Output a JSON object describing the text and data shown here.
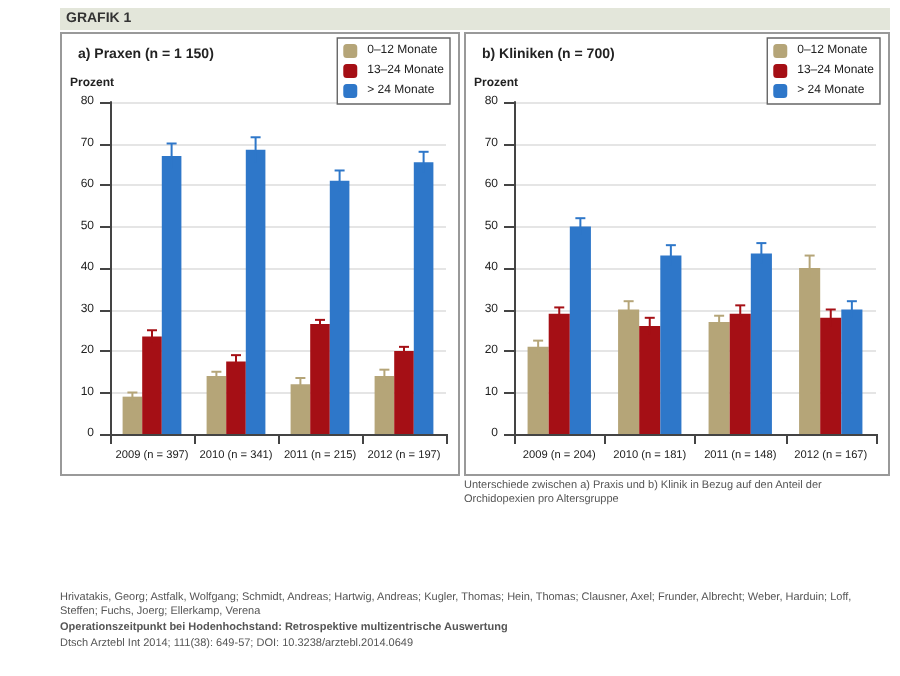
{
  "chart_data": [
    {
      "type": "bar",
      "title": "a) Praxen (n = 1 150)",
      "ylabel": "Prozent",
      "categories": [
        "2009 (n = 397)",
        "2010 (n = 341)",
        "2011 (n = 215)",
        "2012 (n = 197)"
      ],
      "series": [
        {
          "name": "0–12 Monate",
          "color": "#b5a578",
          "values": [
            9,
            14,
            12,
            14
          ],
          "errors": [
            1,
            1,
            1.5,
            1.5
          ]
        },
        {
          "name": "13–24 Monate",
          "color": "#a50f15",
          "values": [
            23.5,
            17.5,
            26.5,
            20
          ],
          "errors": [
            1.5,
            1.5,
            1,
            1
          ]
        },
        {
          "name": "> 24 Monate",
          "color": "#2e77c9",
          "values": [
            67,
            68.5,
            61,
            65.5
          ],
          "errors": [
            3,
            3,
            2.5,
            2.5
          ]
        }
      ],
      "ylim": [
        0,
        80
      ],
      "yticks": [
        0,
        10,
        20,
        30,
        40,
        50,
        60,
        70,
        80
      ],
      "grid": "y",
      "legend": "top right",
      "annotations": [
        "GRAFIK 1",
        "Hrivatakis, Georg; Astfalk, Wolfgang; Schmidt, Andreas; Hartwig, Andreas; Kugler, Thomas; Hein, Thomas; Clausner, Axel; Frunder, Albrecht; Weber, Harduin; Loff, Steffen; Fuchs, Joerg; Ellerkamp, Verena",
        "Operationszeitpunkt bei Hodenhochstand: Retrospektive multizentrische Auswertung",
        "Dtsch Arztebl Int 2014; 111(38): 649-57; DOI: 10.3238/arztebl.2014.0649"
      ]
    },
    {
      "type": "bar",
      "title": "b) Kliniken (n = 700)",
      "ylabel": "Prozent",
      "categories": [
        "2009 (n = 204)",
        "2010 (n = 181)",
        "2011 (n = 148)",
        "2012 (n = 167)"
      ],
      "series": [
        {
          "name": "0–12 Monate",
          "color": "#b5a578",
          "values": [
            21,
            30,
            27,
            40
          ],
          "errors": [
            1.5,
            2,
            1.5,
            3
          ]
        },
        {
          "name": "13–24 Monate",
          "color": "#a50f15",
          "values": [
            29,
            26,
            29,
            28
          ],
          "errors": [
            1.5,
            2,
            2,
            2
          ]
        },
        {
          "name": "> 24 Monate",
          "color": "#2e77c9",
          "values": [
            50,
            43,
            43.5,
            30
          ],
          "errors": [
            2,
            2.5,
            2.5,
            2
          ]
        }
      ],
      "ylim": [
        0,
        80
      ],
      "yticks": [
        0,
        10,
        20,
        30,
        40,
        50,
        60,
        70,
        80
      ],
      "grid": "y",
      "legend": "top right",
      "annotations": [
        "Unterschiede zwischen a) Praxis und b) Klinik in Bezug auf den Anteil der Orchidopexien pro Altersgruppe"
      ]
    }
  ]
}
